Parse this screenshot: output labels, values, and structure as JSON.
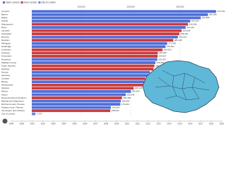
{
  "chart_data": {
    "type": "bar",
    "orientation": "horizontal",
    "categories": [
      "Croydon",
      "Barnet",
      "Ealing",
      "Enfield",
      "Wandsworth",
      "Brent",
      "Lambeth",
      "Southwark",
      "Bromley",
      "Newham",
      "Hillingdon",
      "Redbridge",
      "Lewisham",
      "Haringey",
      "Greenwich",
      "Hounslow",
      "Waltham Forest",
      "Tower Hamlets",
      "Hackney",
      "Harrow",
      "Havering",
      "Camden",
      "Bexley",
      "Westminster",
      "Islington",
      "Merton",
      "Sutton",
      "Hammersmith and Fulham",
      "Barking and Dagenham",
      "Richmond upon Thames",
      "Kingston upon Thames",
      "Kensington and Chelsea",
      "City of London"
    ],
    "series": [
      {
        "name": "Outer London",
        "color": "#4f6fd9",
        "values": [
          372752,
          356386,
          341806,
          320524,
          null,
          311215,
          null,
          null,
          295532,
          null,
          273936,
          270502,
          null,
          null,
          null,
          253957,
          250000,
          null,
          null,
          239056,
          237232,
          null,
          228000,
          null,
          null,
          200543,
          190146,
          null,
          180000,
          179000,
          160060,
          null,
          null
        ],
        "value_labels": [
          "372,752",
          "356,386",
          "341,806",
          "320,524",
          null,
          "311,215",
          null,
          null,
          "295,532",
          null,
          "273,936",
          "270,502",
          null,
          null,
          null,
          "253,957",
          "250,000",
          null,
          null,
          "239,056",
          "237,232",
          null,
          "228,000",
          null,
          null,
          "200,543",
          "190,146",
          null,
          "180,000",
          "179,000",
          "160,060",
          null,
          null
        ]
      },
      {
        "name": "Inner London",
        "color": "#cc3b3b",
        "values": [
          null,
          null,
          null,
          null,
          316096,
          null,
          303086,
          298464,
          null,
          286180,
          null,
          null,
          264500,
          254926,
          254557,
          null,
          null,
          248000,
          246270,
          null,
          null,
          229719,
          null,
          226841,
          206125,
          null,
          null,
          182493,
          null,
          null,
          null,
          158649,
          null
        ],
        "value_labels": [
          null,
          null,
          null,
          null,
          "316,096",
          null,
          "303,086",
          "298,464",
          null,
          "286,180",
          null,
          null,
          "264,500",
          "254,926",
          "254,557",
          null,
          null,
          "248,000",
          "246,270",
          null,
          null,
          "229,719",
          null,
          "226,841",
          "206,125",
          null,
          null,
          "182,493",
          null,
          null,
          null,
          "158,649",
          null
        ]
      },
      {
        "name": "City of London",
        "color": "#6b8be6",
        "values": [
          null,
          null,
          null,
          null,
          null,
          null,
          null,
          null,
          null,
          null,
          null,
          null,
          null,
          null,
          null,
          null,
          null,
          null,
          null,
          null,
          null,
          null,
          null,
          null,
          null,
          null,
          null,
          null,
          null,
          null,
          null,
          null,
          7375
        ],
        "value_labels": [
          null,
          null,
          null,
          null,
          null,
          null,
          null,
          null,
          null,
          null,
          null,
          null,
          null,
          null,
          null,
          null,
          null,
          null,
          null,
          null,
          null,
          null,
          null,
          null,
          null,
          null,
          null,
          null,
          null,
          null,
          null,
          null,
          "7,375"
        ]
      }
    ],
    "xlim": [
      0,
      400000
    ],
    "xticks": [
      {
        "value": 100000,
        "label": "100,000"
      },
      {
        "value": 200000,
        "label": "200,000"
      },
      {
        "value": 300000,
        "label": "300,000"
      }
    ],
    "grid": true,
    "timeline": [
      "1999",
      "2000",
      "2001",
      "2002",
      "2003",
      "2004",
      "2005",
      "2006",
      "2007",
      "2008",
      "2009",
      "2010",
      "2011",
      "2012",
      "2013",
      "2014",
      "2015",
      "2016",
      "2017",
      "2018",
      "2019"
    ]
  }
}
